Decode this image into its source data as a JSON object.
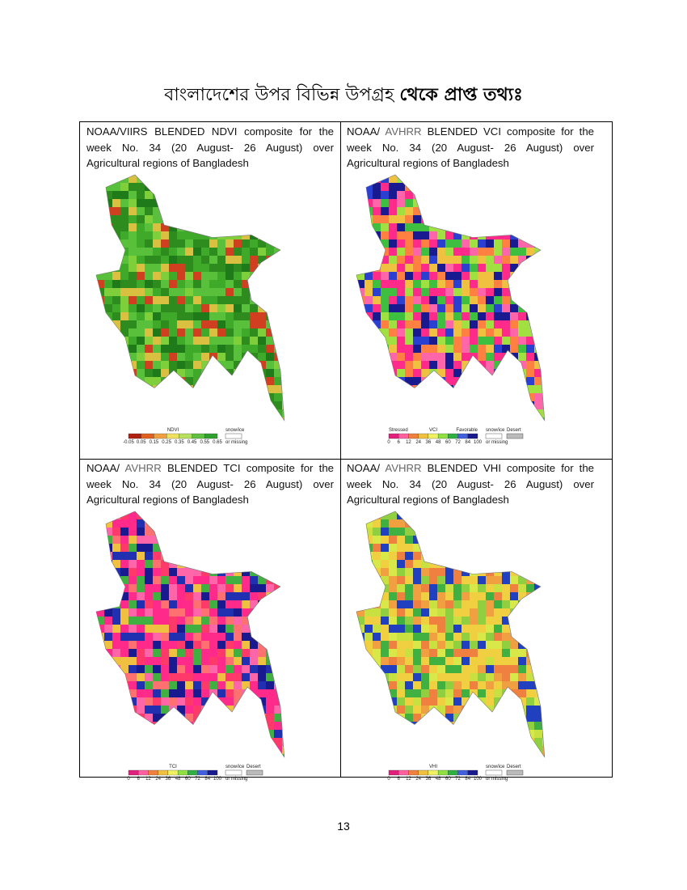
{
  "header": {
    "title": "বাংলাদেশের উপর বিভিন্ন উপগ্রহ",
    "title_bold": "থেকে প্রাপ্ত তথ্যঃ"
  },
  "cells": [
    {
      "source": "NOAA/VIIRS",
      "text": "BLENDED NDVI composite for the week No. 34 (20 August- 26 August) over Agricultural regions of Bangladesh",
      "legend": {
        "title": "NDVI",
        "ticks": [
          "-0.05",
          "0.05",
          "0.15",
          "0.25",
          "0.35",
          "0.45",
          "0.55",
          "0.65"
        ],
        "extra": [
          "snow/ice",
          "or missing"
        ]
      }
    },
    {
      "source": "NOAA/",
      "sensor": "AVHRR",
      "text": "BLENDED VCI composite for the week No. 34 (20 August- 26 August) over Agricultural regions of Bangladesh",
      "legend": {
        "left": "Stressed",
        "title": "VCI",
        "right": "Favorable",
        "ticks": [
          "0",
          "6",
          "12",
          "24",
          "36",
          "48",
          "60",
          "72",
          "84",
          "100"
        ],
        "extra": [
          "snow/ice",
          "Desert",
          "or missing"
        ]
      }
    },
    {
      "source": "NOAA/",
      "sensor": "AVHRR",
      "text": "BLENDED TCI composite for the week No. 34 (20 August- 26 August) over Agricultural regions of Bangladesh",
      "legend": {
        "title": "TCI",
        "ticks": [
          "0",
          "6",
          "12",
          "24",
          "36",
          "48",
          "60",
          "72",
          "84",
          "100"
        ],
        "extra": [
          "snow/ice",
          "Desert",
          "or missing"
        ]
      }
    },
    {
      "source": "NOAA/",
      "sensor": "AVHRR",
      "text": "BLENDED VHI composite for the week No. 34 (20 August- 26 August) over Agricultural regions of Bangladesh",
      "legend": {
        "title": "VHI",
        "ticks": [
          "0",
          "6",
          "12",
          "24",
          "36",
          "48",
          "60",
          "72",
          "84",
          "100"
        ],
        "extra": [
          "snow/ice",
          "Desert",
          "or missing"
        ]
      }
    }
  ],
  "footer": {
    "page": "13"
  }
}
